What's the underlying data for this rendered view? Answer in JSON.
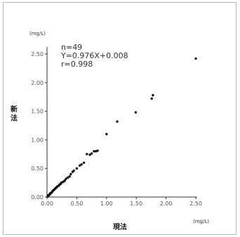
{
  "chart_data": {
    "type": "scatter",
    "xlabel": "現法",
    "ylabel": "新法",
    "x_unit": "(mg/L)",
    "y_unit": "(mg/L)",
    "xlim": [
      0,
      2.5
    ],
    "ylim": [
      0,
      2.5
    ],
    "x_ticks": [
      "0.00",
      "0.50",
      "1.00",
      "1.50",
      "2.00",
      "2.50"
    ],
    "y_ticks": [
      "0.00",
      "0.50",
      "1.00",
      "1.50",
      "2.00",
      "2.50"
    ],
    "grid": false,
    "annotations": [
      "n=49",
      "Y=0.976X+0.008",
      "r=0.998"
    ],
    "points": [
      [
        0.01,
        0.01
      ],
      [
        0.02,
        0.02
      ],
      [
        0.02,
        0.03
      ],
      [
        0.03,
        0.03
      ],
      [
        0.04,
        0.04
      ],
      [
        0.05,
        0.05
      ],
      [
        0.05,
        0.06
      ],
      [
        0.06,
        0.07
      ],
      [
        0.07,
        0.07
      ],
      [
        0.08,
        0.08
      ],
      [
        0.09,
        0.1
      ],
      [
        0.1,
        0.11
      ],
      [
        0.11,
        0.12
      ],
      [
        0.12,
        0.13
      ],
      [
        0.13,
        0.14
      ],
      [
        0.14,
        0.15
      ],
      [
        0.15,
        0.16
      ],
      [
        0.16,
        0.17
      ],
      [
        0.17,
        0.18
      ],
      [
        0.18,
        0.19
      ],
      [
        0.2,
        0.2
      ],
      [
        0.21,
        0.22
      ],
      [
        0.23,
        0.23
      ],
      [
        0.24,
        0.25
      ],
      [
        0.26,
        0.26
      ],
      [
        0.28,
        0.27
      ],
      [
        0.3,
        0.29
      ],
      [
        0.32,
        0.32
      ],
      [
        0.38,
        0.36
      ],
      [
        0.4,
        0.4
      ],
      [
        0.43,
        0.44
      ],
      [
        0.45,
        0.46
      ],
      [
        0.5,
        0.5
      ],
      [
        0.55,
        0.55
      ],
      [
        0.62,
        0.6
      ],
      [
        0.67,
        0.75
      ],
      [
        0.72,
        0.74
      ],
      [
        0.75,
        0.76
      ],
      [
        0.79,
        0.8
      ],
      [
        0.82,
        0.8
      ],
      [
        0.85,
        0.81
      ],
      [
        1.0,
        1.1
      ],
      [
        1.18,
        1.32
      ],
      [
        1.49,
        1.48
      ],
      [
        1.76,
        1.72
      ],
      [
        1.78,
        1.78
      ],
      [
        2.5,
        2.42
      ],
      [
        0.35,
        0.34
      ],
      [
        0.58,
        0.57
      ]
    ]
  }
}
